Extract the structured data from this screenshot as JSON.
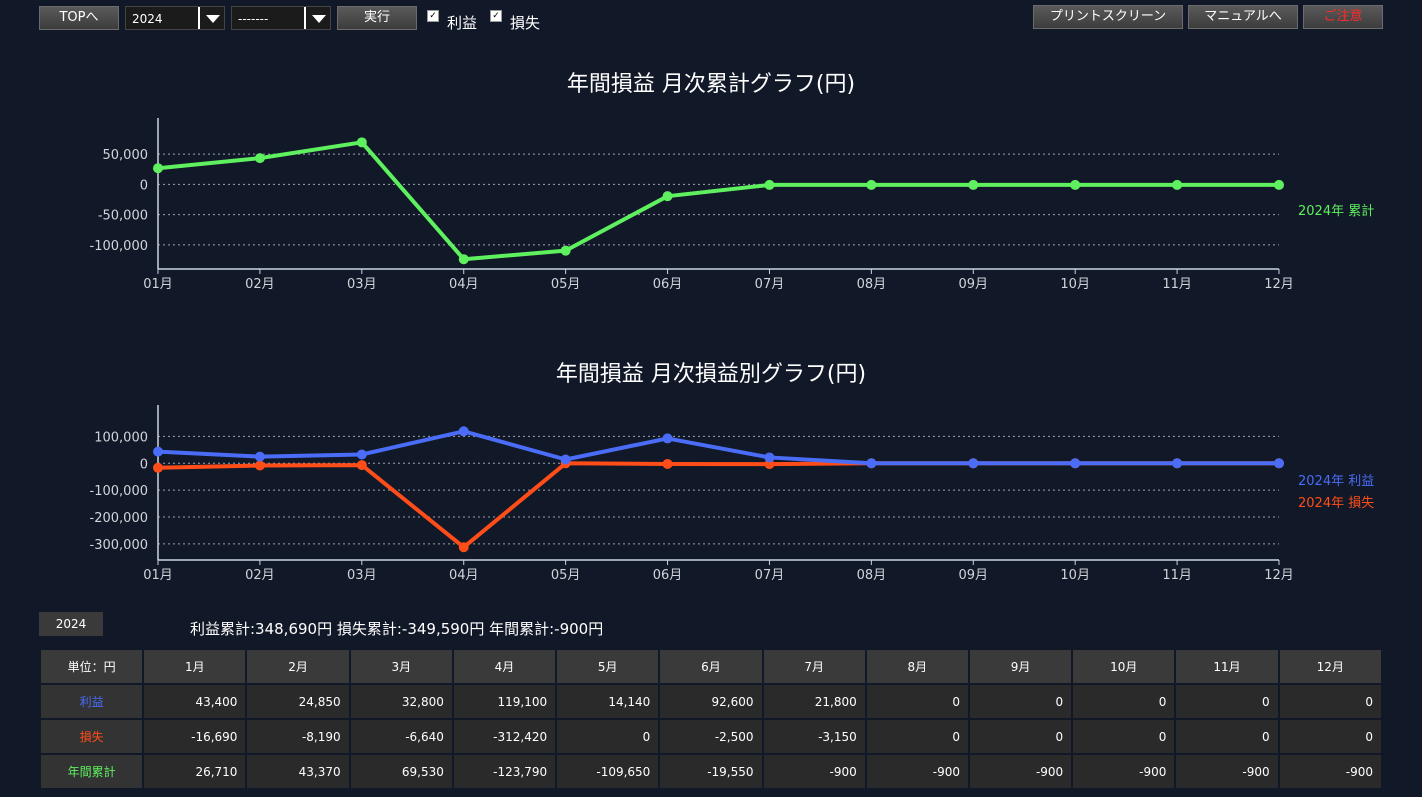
{
  "toolbar": {
    "top_label": "TOPへ",
    "year_value": "2024",
    "month_value": "-------",
    "run_label": "実行",
    "profit_check_label": "利益",
    "loss_check_label": "損失",
    "print_label": "プリントスクリーン",
    "manual_label": "マニュアルへ",
    "notice_label": "ご注意"
  },
  "colors": {
    "cumulative": "#5ef05e",
    "profit": "#4a6cf7",
    "loss": "#ff4d1a",
    "notice": "#ff2a2a"
  },
  "chart_data": [
    {
      "type": "line",
      "title": "年間損益 月次累計グラフ(円)",
      "categories": [
        "01月",
        "02月",
        "03月",
        "04月",
        "05月",
        "06月",
        "07月",
        "08月",
        "09月",
        "10月",
        "11月",
        "12月"
      ],
      "series": [
        {
          "name": "2024年 累計",
          "values": [
            26710,
            43370,
            69530,
            -123790,
            -109650,
            -19550,
            -900,
            -900,
            -900,
            -900,
            -900,
            -900
          ]
        }
      ],
      "yticks": [
        50000,
        0,
        -50000,
        -100000
      ],
      "ytick_labels": [
        "50,000",
        "0",
        "-50,000",
        "-100,000"
      ],
      "ylim": [
        -140000,
        80000
      ],
      "grid": true,
      "legend": "right"
    },
    {
      "type": "line",
      "title": "年間損益 月次損益別グラフ(円)",
      "categories": [
        "01月",
        "02月",
        "03月",
        "04月",
        "05月",
        "06月",
        "07月",
        "08月",
        "09月",
        "10月",
        "11月",
        "12月"
      ],
      "series": [
        {
          "name": "2024年 利益",
          "values": [
            43400,
            24850,
            32800,
            119100,
            14140,
            92600,
            21800,
            0,
            0,
            0,
            0,
            0
          ]
        },
        {
          "name": "2024年 損失",
          "values": [
            -16690,
            -8190,
            -6640,
            -312420,
            0,
            -2500,
            -3150,
            0,
            0,
            0,
            0,
            0
          ]
        }
      ],
      "yticks": [
        100000,
        0,
        -100000,
        -200000,
        -300000
      ],
      "ytick_labels": [
        "100,000",
        "0",
        "-100,000",
        "-200,000",
        "-300,000"
      ],
      "ylim": [
        -360000,
        150000
      ],
      "grid": true,
      "legend": "right"
    }
  ],
  "summary": {
    "year_tag": "2024",
    "text": "利益累計:348,690円 損失累計:-349,590円 年間累計:-900円"
  },
  "table": {
    "unit_label": "単位：円",
    "months": [
      "1月",
      "2月",
      "3月",
      "4月",
      "5月",
      "6月",
      "7月",
      "8月",
      "9月",
      "10月",
      "11月",
      "12月"
    ],
    "rows": [
      {
        "label": "利益",
        "values": [
          "43,400",
          "24,850",
          "32,800",
          "119,100",
          "14,140",
          "92,600",
          "21,800",
          "0",
          "0",
          "0",
          "0",
          "0"
        ]
      },
      {
        "label": "損失",
        "values": [
          "-16,690",
          "-8,190",
          "-6,640",
          "-312,420",
          "0",
          "-2,500",
          "-3,150",
          "0",
          "0",
          "0",
          "0",
          "0"
        ]
      },
      {
        "label": "年間累計",
        "values": [
          "26,710",
          "43,370",
          "69,530",
          "-123,790",
          "-109,650",
          "-19,550",
          "-900",
          "-900",
          "-900",
          "-900",
          "-900",
          "-900"
        ]
      }
    ]
  }
}
